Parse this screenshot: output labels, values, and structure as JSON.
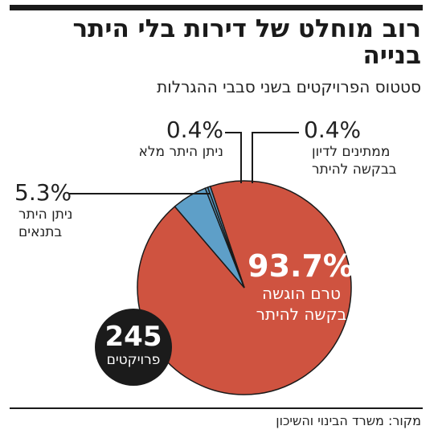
{
  "title": "רוב מוחלט של דירות בלי היתר בנייה",
  "subtitle": "סטטוס הפרויקטים בשני סבבי ההגרלות",
  "source": "מקור: משרד הבינוי והשיכון",
  "badge": {
    "value": "245",
    "unit": "פרויקטים"
  },
  "chart_data": {
    "type": "pie",
    "title": "רוב מוחלט של דירות בלי היתר בנייה",
    "subtitle": "סטטוס הפרויקטים בשני סבבי ההגרלות",
    "slices": [
      {
        "label": "טרם הוגשה בקשה להיתר",
        "pct_text": "93.7%",
        "value": 93.7,
        "color": "#cf5340"
      },
      {
        "label": "ניתן היתר בתנאים",
        "pct_text": "5.3%",
        "value": 5.3,
        "color": "#5e9fc8"
      },
      {
        "label": "ניתן היתר מלא",
        "pct_text": "0.4%",
        "value": 0.4,
        "color": "#5e9fc8"
      },
      {
        "label": "ממתינים לדיון בבקשה להיתר",
        "pct_text": "0.4%",
        "value": 0.4,
        "color": "#5e9fc8"
      }
    ]
  }
}
